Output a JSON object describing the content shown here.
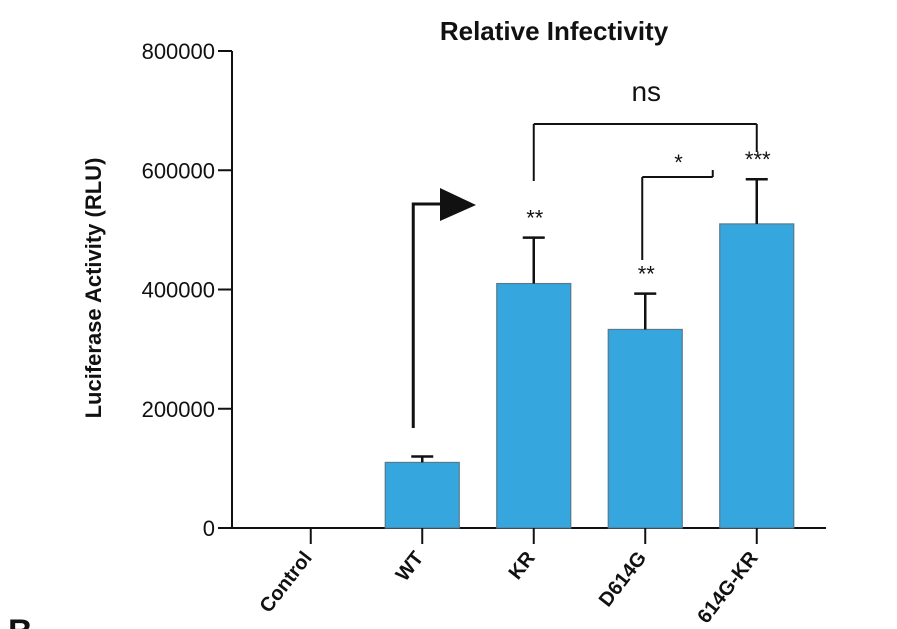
{
  "chart_data": {
    "type": "bar",
    "title": "Relative Infectivity",
    "xlabel": "",
    "ylabel": "Luciferase Activity (RLU)",
    "ylim": [
      0,
      800000
    ],
    "yticks": [
      "0",
      "200000",
      "400000",
      "600000",
      "800000"
    ],
    "ytick_values": [
      0,
      200000,
      400000,
      600000,
      800000
    ],
    "categories": [
      "Control",
      "WT",
      "KR",
      "D614G",
      "614G-KR"
    ],
    "values": [
      0,
      110000,
      410000,
      333000,
      510000
    ],
    "errors": [
      0,
      10000,
      77000,
      60000,
      75000
    ],
    "bar_color": "#35a7de",
    "bar_edge_color": "#5a7a8a",
    "bar_significance": [
      "",
      "",
      "**",
      "**",
      "***"
    ],
    "comparisons": [
      {
        "from": "KR",
        "to": "614G-KR",
        "label": "ns"
      },
      {
        "from": "D614G",
        "to": "614G-KR",
        "label": "*"
      }
    ],
    "annotation_arrow": {
      "from": "WT",
      "direction": "up-right"
    },
    "panel_letter": "B"
  }
}
